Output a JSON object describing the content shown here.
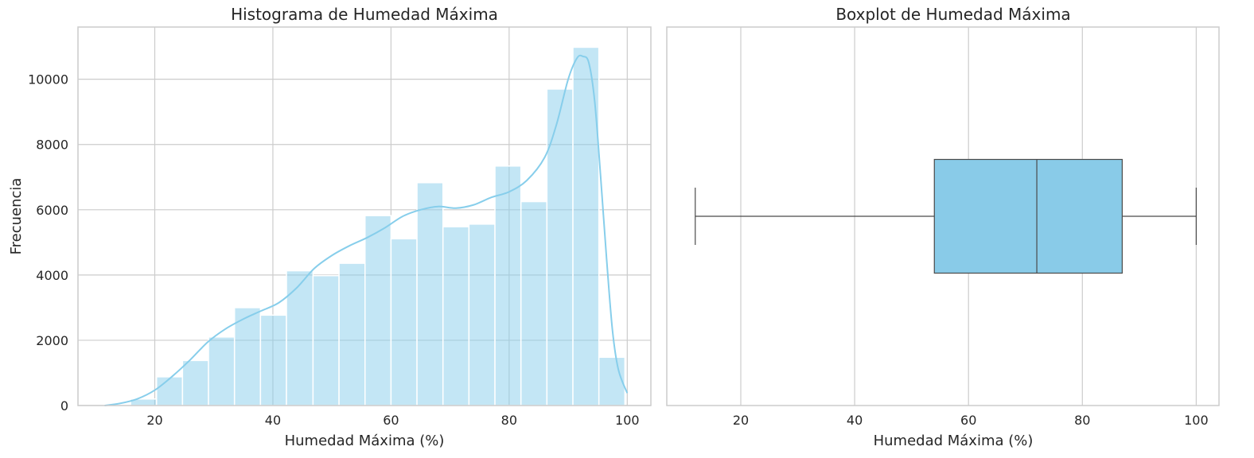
{
  "chart_data": [
    {
      "type": "bar",
      "subtype": "histogram_with_kde",
      "title": "Histograma de Humedad Máxima",
      "xlabel": "Humedad Máxima (%)",
      "ylabel": "Frecuencia",
      "xlim": [
        7,
        104
      ],
      "ylim": [
        0,
        11600
      ],
      "xticks": [
        20,
        40,
        60,
        80,
        100
      ],
      "yticks": [
        0,
        2000,
        4000,
        6000,
        8000,
        10000
      ],
      "grid": true,
      "bar_color": "#87ceeb",
      "bins": [
        {
          "x0": 11.5,
          "x1": 15.9,
          "count": 30
        },
        {
          "x0": 15.9,
          "x1": 20.3,
          "count": 200
        },
        {
          "x0": 20.3,
          "x1": 24.7,
          "count": 880
        },
        {
          "x0": 24.7,
          "x1": 29.1,
          "count": 1380
        },
        {
          "x0": 29.1,
          "x1": 33.5,
          "count": 2100
        },
        {
          "x0": 33.5,
          "x1": 37.9,
          "count": 3000
        },
        {
          "x0": 37.9,
          "x1": 42.3,
          "count": 2770
        },
        {
          "x0": 42.3,
          "x1": 46.8,
          "count": 4130
        },
        {
          "x0": 46.8,
          "x1": 51.2,
          "count": 3980
        },
        {
          "x0": 51.2,
          "x1": 55.6,
          "count": 4360
        },
        {
          "x0": 55.6,
          "x1": 60.0,
          "count": 5820
        },
        {
          "x0": 60.0,
          "x1": 64.4,
          "count": 5110
        },
        {
          "x0": 64.4,
          "x1": 68.8,
          "count": 6830
        },
        {
          "x0": 68.8,
          "x1": 73.2,
          "count": 5480
        },
        {
          "x0": 73.2,
          "x1": 77.6,
          "count": 5560
        },
        {
          "x0": 77.6,
          "x1": 82.0,
          "count": 7340
        },
        {
          "x0": 82.0,
          "x1": 86.4,
          "count": 6250
        },
        {
          "x0": 86.4,
          "x1": 90.8,
          "count": 9700
        },
        {
          "x0": 90.8,
          "x1": 95.2,
          "count": 10980
        },
        {
          "x0": 95.2,
          "x1": 99.6,
          "count": 1480
        }
      ],
      "kde": {
        "x": [
          11.5,
          14,
          17,
          20,
          23,
          26,
          29,
          32,
          35,
          38,
          41,
          44,
          47,
          50,
          53,
          56,
          59,
          62,
          65,
          68,
          71,
          74,
          77,
          80,
          83,
          86,
          88,
          90,
          91.5,
          92.5,
          93.5,
          94.5,
          95.5,
          96.5,
          97.5,
          98.5,
          100
        ],
        "y": [
          0,
          60,
          200,
          470,
          900,
          1400,
          1950,
          2350,
          2650,
          2900,
          3150,
          3600,
          4200,
          4600,
          4900,
          5150,
          5450,
          5800,
          6000,
          6100,
          6050,
          6150,
          6380,
          6550,
          6900,
          7600,
          8600,
          10000,
          10650,
          10700,
          10500,
          9300,
          7000,
          4500,
          2300,
          1100,
          380
        ]
      }
    },
    {
      "type": "boxplot",
      "title": "Boxplot de Humedad Máxima",
      "xlabel": "Humedad Máxima (%)",
      "xlim": [
        7,
        104
      ],
      "xticks": [
        20,
        40,
        60,
        80,
        100
      ],
      "grid": true,
      "box_color": "#89cbe8",
      "stats": {
        "whisker_low": 12,
        "q1": 54,
        "median": 72,
        "q3": 87,
        "whisker_high": 100
      }
    }
  ]
}
